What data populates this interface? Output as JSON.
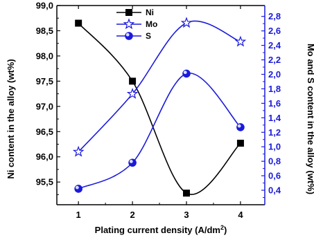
{
  "chart_data": {
    "type": "line",
    "xlabel": "Plating current density (A/dm",
    "xlabel_sup": "2",
    "xlabel_tail": ")",
    "ylabel_left": "Ni content in the alloy (wt%)",
    "ylabel_right": "Mo and S content in the alloy (wt%)",
    "x": [
      1,
      2,
      3,
      4
    ],
    "x_ticks": [
      "1",
      "2",
      "3",
      "4"
    ],
    "xlim": [
      0.6,
      4.45
    ],
    "y_left_lim": [
      95.05,
      99.0
    ],
    "y_left_ticks": [
      "95,5",
      "96,0",
      "96,5",
      "97,0",
      "97,5",
      "98,0",
      "98,5",
      "99,0"
    ],
    "y_right_lim": [
      0.2,
      2.95
    ],
    "y_right_ticks": [
      "0,4",
      "0,6",
      "0,8",
      "1,0",
      "1,2",
      "1,4",
      "1,6",
      "1,8",
      "2,0",
      "2,2",
      "2,4",
      "2,6",
      "2,8"
    ],
    "legend_position": "top-center",
    "series": [
      {
        "name": "Ni",
        "axis": "left",
        "values": [
          98.65,
          97.5,
          95.28,
          96.27
        ],
        "color": "#000000",
        "marker": "square"
      },
      {
        "name": "Mo",
        "axis": "right",
        "values": [
          0.93,
          1.73,
          2.71,
          2.45
        ],
        "color": "#1a1adc",
        "marker": "star"
      },
      {
        "name": "S",
        "axis": "right",
        "values": [
          0.42,
          0.78,
          2.01,
          1.27
        ],
        "color": "#1a1adc",
        "marker": "circle"
      }
    ]
  }
}
